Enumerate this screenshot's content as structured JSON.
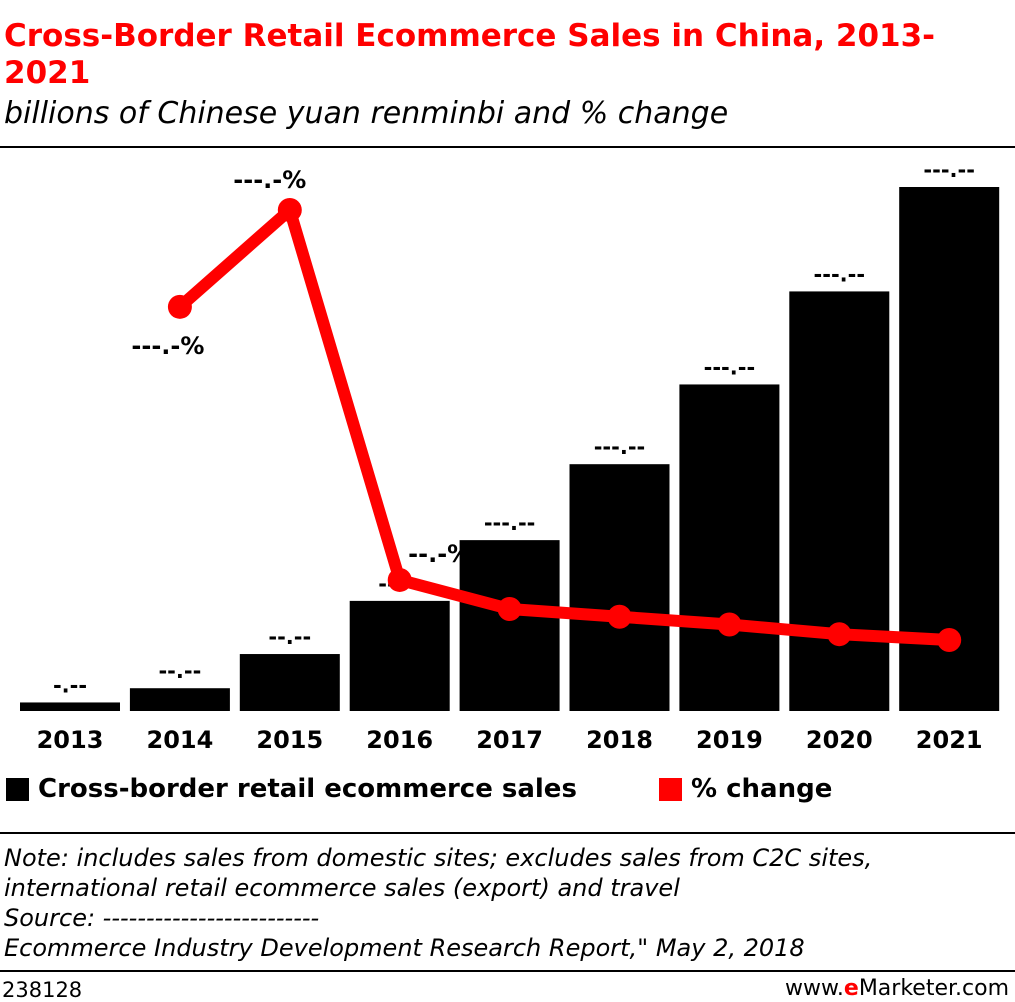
{
  "header": {
    "title": "Cross-Border Retail Ecommerce Sales in China, 2013-2021",
    "subtitle": "billions of Chinese yuan renminbi and % change"
  },
  "legend": {
    "sales_label": "Cross-border retail ecommerce sales",
    "change_label": "% change"
  },
  "notes": {
    "note_line1": "Note: includes sales from domestic sites; excludes sales from C2C sites,",
    "note_line2": "international retail ecommerce sales (export) and travel",
    "source_line": "Source: -------------------------",
    "source_line2": "Ecommerce Industry Development Research Report,\" May 2, 2018"
  },
  "footer": {
    "chart_id": "238128",
    "brand_prefix": "www.",
    "brand_e": "e",
    "brand_rest": "Marketer.com"
  },
  "colors": {
    "bar": "#000000",
    "line": "#ff0000",
    "title": "#ff0000"
  },
  "chart_data": {
    "type": "bar",
    "categories": [
      "2013",
      "2014",
      "2015",
      "2016",
      "2017",
      "2018",
      "2019",
      "2020",
      "2021"
    ],
    "series": [
      {
        "name": "Cross-border retail ecommerce sales",
        "type": "bar",
        "values": [
          4.5,
          12,
          30,
          58,
          90,
          130,
          172,
          221,
          276
        ],
        "labels": [
          "-.--",
          "--.--",
          "--.--",
          "--.--",
          "---.--",
          "---.--",
          "---.--",
          "---.--",
          "---.--"
        ]
      },
      {
        "name": "% change",
        "type": "line",
        "values": [
          null,
          168,
          218,
          27,
          12,
          8,
          4,
          -1,
          -4
        ],
        "labels": [
          "",
          "---.-%",
          "---.-%",
          "--.-%",
          "--.-%",
          "--.-%",
          "--.-%",
          "--.-%",
          "--.-%"
        ]
      }
    ],
    "bar_axis_range": [
      0,
      276
    ],
    "line_axis_range": [
      -4,
      218
    ],
    "grid": false,
    "legend_position": "bottom"
  }
}
